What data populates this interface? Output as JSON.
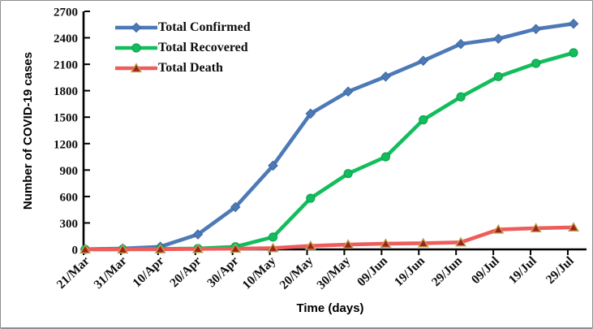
{
  "figure": {
    "background": "#ffffff",
    "border_color": "#8f8f8f",
    "axis_color": "#000000"
  },
  "chart_data": {
    "type": "line",
    "title": "",
    "xlabel": "Time (days)",
    "ylabel": "Number of COVID-19 cases",
    "grid": false,
    "legend_position": "top-left-inside",
    "x_categories": [
      "21/Mar",
      "31/Mar",
      "10/Apr",
      "20/Apr",
      "30/Apr",
      "10/May",
      "20/May",
      "30/May",
      "09/Jun",
      "19/Jun",
      "29/Jun",
      "09/Jul",
      "19/Jul",
      "29/Jul"
    ],
    "y_axis": {
      "min": 0,
      "max": 2700,
      "tick_step": 300,
      "tick_labels": [
        "0",
        "300",
        "600",
        "900",
        "1200",
        "1500",
        "1800",
        "2100",
        "2400",
        "2700"
      ]
    },
    "series": [
      {
        "name": "Total Confirmed",
        "color": "#4d7ab7",
        "marker": "diamond",
        "marker_color": "#4d7ab7",
        "marker_edge_color": "#3f689f",
        "values": [
          2,
          10,
          30,
          170,
          480,
          950,
          1540,
          1790,
          1960,
          2140,
          2330,
          2390,
          2500,
          2560
        ]
      },
      {
        "name": "Total Recovered",
        "color": "#12bd5c",
        "marker": "circle",
        "marker_color": "#12bd5c",
        "marker_edge_color": "#0e9d4d",
        "values": [
          0,
          2,
          5,
          10,
          30,
          140,
          580,
          860,
          1050,
          1470,
          1730,
          1960,
          2110,
          2230
        ]
      },
      {
        "name": "Total Death",
        "color": "#ee5c5c",
        "marker": "triangle",
        "marker_color": "#a61d1d",
        "marker_edge_color": "#b9a44c",
        "values": [
          0,
          0,
          2,
          5,
          8,
          15,
          40,
          55,
          65,
          70,
          80,
          225,
          240,
          250
        ]
      }
    ]
  }
}
